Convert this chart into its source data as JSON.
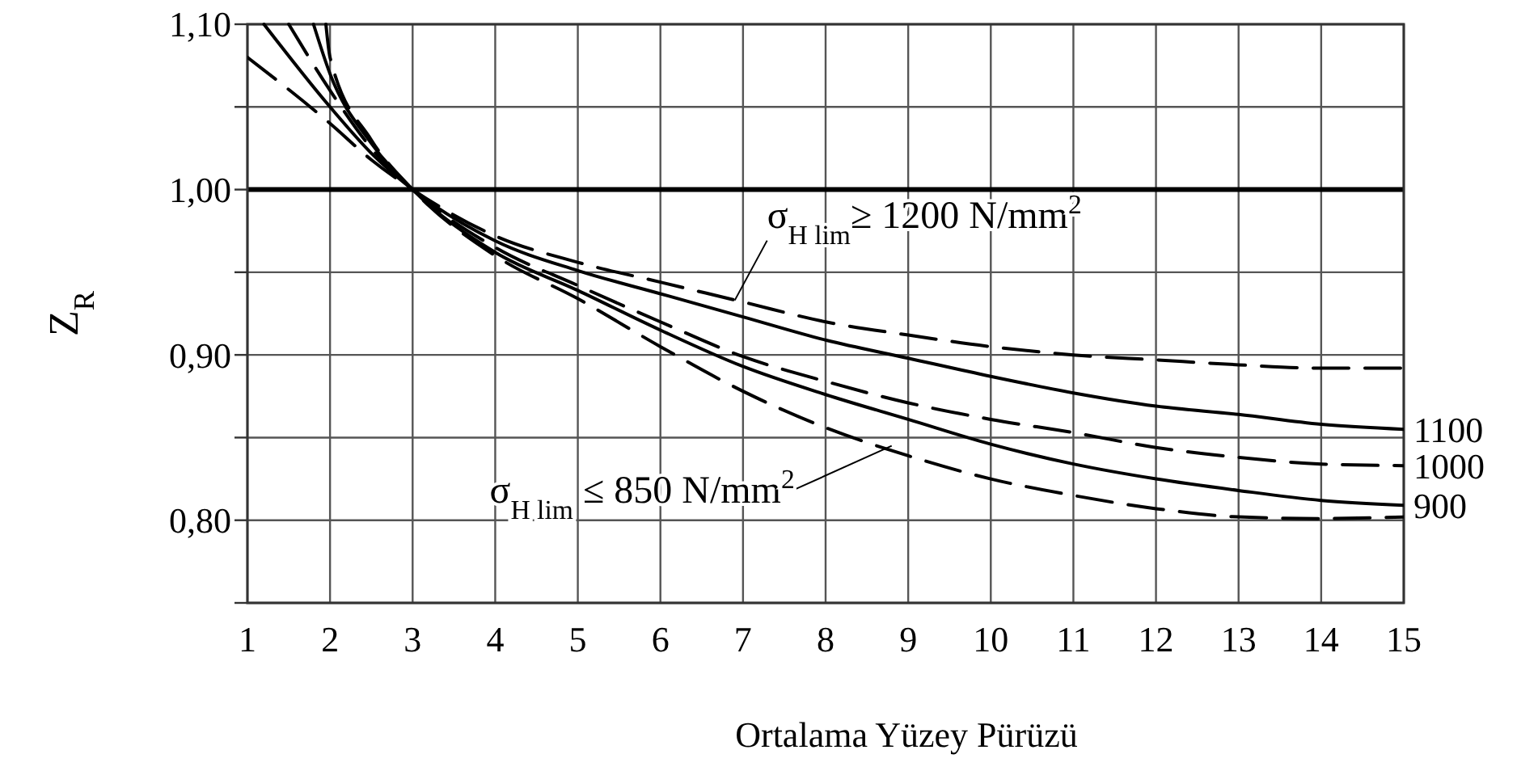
{
  "chart_data": {
    "type": "line",
    "xlabel": "Ortalama Yüzey Pürüzü",
    "ylabel": "Z$_{R}$",
    "xlim": [
      1,
      15
    ],
    "xticks": [
      1,
      2,
      3,
      4,
      5,
      6,
      7,
      8,
      9,
      10,
      11,
      12,
      13,
      14,
      15
    ],
    "ylim": [
      0.75,
      1.1
    ],
    "yticks": [
      {
        "value": 0.75,
        "label": null
      },
      {
        "value": 0.8,
        "label": "0,80"
      },
      {
        "value": 0.85,
        "label": null
      },
      {
        "value": 0.9,
        "label": "0,90"
      },
      {
        "value": 0.95,
        "label": null
      },
      {
        "value": 1.0,
        "label": "1,00"
      },
      {
        "value": 1.05,
        "label": null
      },
      {
        "value": 1.1,
        "label": "1,10"
      }
    ],
    "grid": true,
    "ref_lines": [
      {
        "axis": "y",
        "value": 1.0
      }
    ],
    "series": [
      {
        "color": "#000000",
        "line_style": "dashed",
        "x": [
          1,
          2,
          2.5,
          3,
          4,
          5,
          6,
          7,
          8,
          9,
          10,
          11,
          12,
          13,
          14,
          15
        ],
        "values": [
          1.08,
          1.04,
          1.018,
          1.0,
          0.972,
          0.956,
          0.944,
          0.932,
          0.92,
          0.912,
          0.905,
          0.9,
          0.897,
          0.894,
          0.892,
          0.892
        ]
      },
      {
        "name": "1100",
        "color": "#000000",
        "line_style": "solid",
        "x": [
          1.2,
          2,
          2.5,
          3,
          4,
          5,
          6,
          7,
          8,
          9,
          10,
          11,
          12,
          13,
          14,
          15
        ],
        "values": [
          1.1,
          1.05,
          1.022,
          1.0,
          0.969,
          0.951,
          0.937,
          0.923,
          0.909,
          0.898,
          0.887,
          0.877,
          0.869,
          0.864,
          0.858,
          0.855
        ]
      },
      {
        "name": "1000",
        "color": "#000000",
        "line_style": "dashed",
        "x": [
          1.5,
          2,
          2.5,
          3,
          4,
          5,
          6,
          7,
          8,
          9,
          10,
          11,
          12,
          13,
          14,
          15
        ],
        "values": [
          1.1,
          1.06,
          1.025,
          1.0,
          0.965,
          0.942,
          0.92,
          0.899,
          0.884,
          0.871,
          0.861,
          0.853,
          0.844,
          0.838,
          0.834,
          0.833
        ]
      },
      {
        "name": "900",
        "color": "#000000",
        "line_style": "solid",
        "x": [
          1.8,
          2,
          2.5,
          3,
          4,
          5,
          6,
          7,
          8,
          9,
          10,
          11,
          12,
          13,
          14,
          15
        ],
        "values": [
          1.1,
          1.07,
          1.028,
          1.0,
          0.962,
          0.939,
          0.915,
          0.893,
          0.876,
          0.861,
          0.846,
          0.834,
          0.825,
          0.818,
          0.812,
          0.809
        ]
      },
      {
        "color": "#000000",
        "line_style": "dashed",
        "x": [
          1.95,
          2,
          2.5,
          3,
          4,
          5,
          6,
          7,
          8,
          9,
          10,
          11,
          12,
          13,
          14,
          15
        ],
        "values": [
          1.1,
          1.08,
          1.03,
          1.0,
          0.96,
          0.934,
          0.905,
          0.878,
          0.856,
          0.839,
          0.825,
          0.815,
          0.807,
          0.802,
          0.801,
          0.802
        ]
      }
    ],
    "annotations": [
      {
        "text": "σ$_{H lim}$≥ 1200 N/mm$^{2}$",
        "x": 6.9,
        "y": 0.933
      },
      {
        "text": "σ$_{H lim}$ ≤ 850  N/mm$^{2}$",
        "x": 8.8,
        "y": 0.845
      }
    ]
  }
}
